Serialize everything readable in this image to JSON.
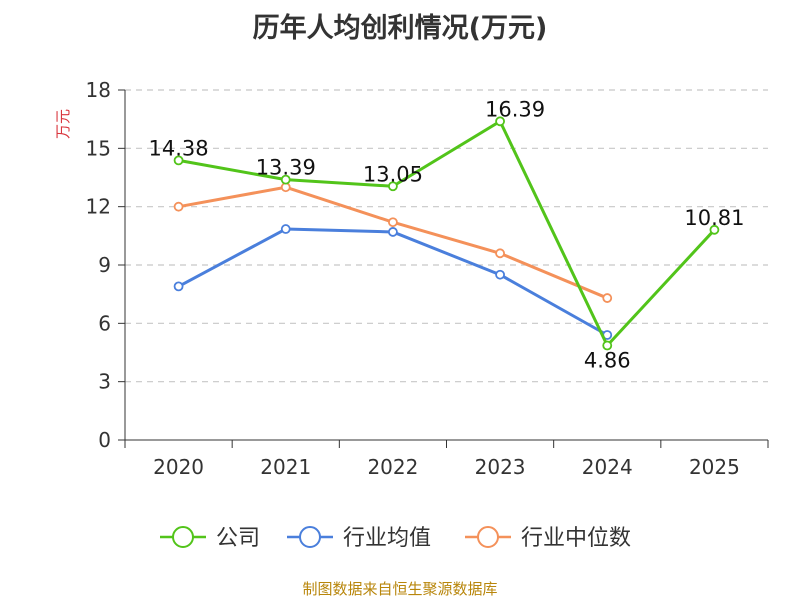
{
  "chart_data": {
    "type": "line",
    "title": "历年人均创利情况(万元)",
    "ylabel": "万元",
    "xlabel": "",
    "categories": [
      "2020",
      "2021",
      "2022",
      "2023",
      "2024",
      "2025"
    ],
    "ylim": [
      0,
      18
    ],
    "yticks": [
      0,
      3,
      6,
      9,
      12,
      15,
      18
    ],
    "grid": true,
    "legend_position": "bottom",
    "series": [
      {
        "name": "公司",
        "color": "#52c41a",
        "values": [
          14.38,
          13.39,
          13.05,
          16.39,
          4.86,
          10.81
        ],
        "labels": [
          "14.38",
          "13.39",
          "13.05",
          "16.39",
          "4.86",
          "10.81"
        ]
      },
      {
        "name": "行业均值",
        "color": "#4a7fdc",
        "values": [
          7.9,
          10.85,
          10.7,
          8.5,
          5.4,
          null
        ]
      },
      {
        "name": "行业中位数",
        "color": "#f4915a",
        "values": [
          12.0,
          13.0,
          11.2,
          9.6,
          7.3,
          null
        ]
      }
    ]
  },
  "footer": "制图数据来自恒生聚源数据库"
}
